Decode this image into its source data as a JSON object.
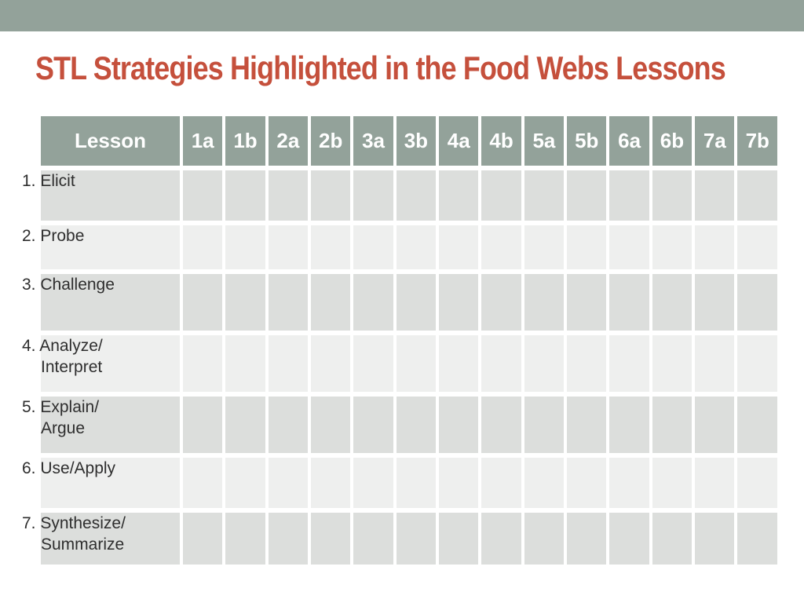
{
  "slide": {
    "title": "STL Strategies Highlighted in the Food Webs Lessons"
  },
  "colors": {
    "accent_bar": "#93a29a",
    "table_header_bg": "#93a29a",
    "title_text": "#c5503c",
    "row_stripe_dark": "#dcdedc",
    "row_stripe_light": "#eeefee",
    "header_text": "#ffffff",
    "body_text": "#2e2e2e"
  },
  "table": {
    "header": [
      "Lesson",
      "1a",
      "1b",
      "2a",
      "2b",
      "3a",
      "3b",
      "4a",
      "4b",
      "5a",
      "5b",
      "6a",
      "6b",
      "7a",
      "7b"
    ],
    "rows": [
      {
        "label": "1. Elicit"
      },
      {
        "label": "2. Probe"
      },
      {
        "label": "3. Challenge"
      },
      {
        "label": "4. Analyze/\nInterpret"
      },
      {
        "label": "5. Explain/\nArgue"
      },
      {
        "label": "6. Use/Apply"
      },
      {
        "label": "7. Synthesize/\nSummarize"
      }
    ],
    "data_columns_per_row": 14
  }
}
